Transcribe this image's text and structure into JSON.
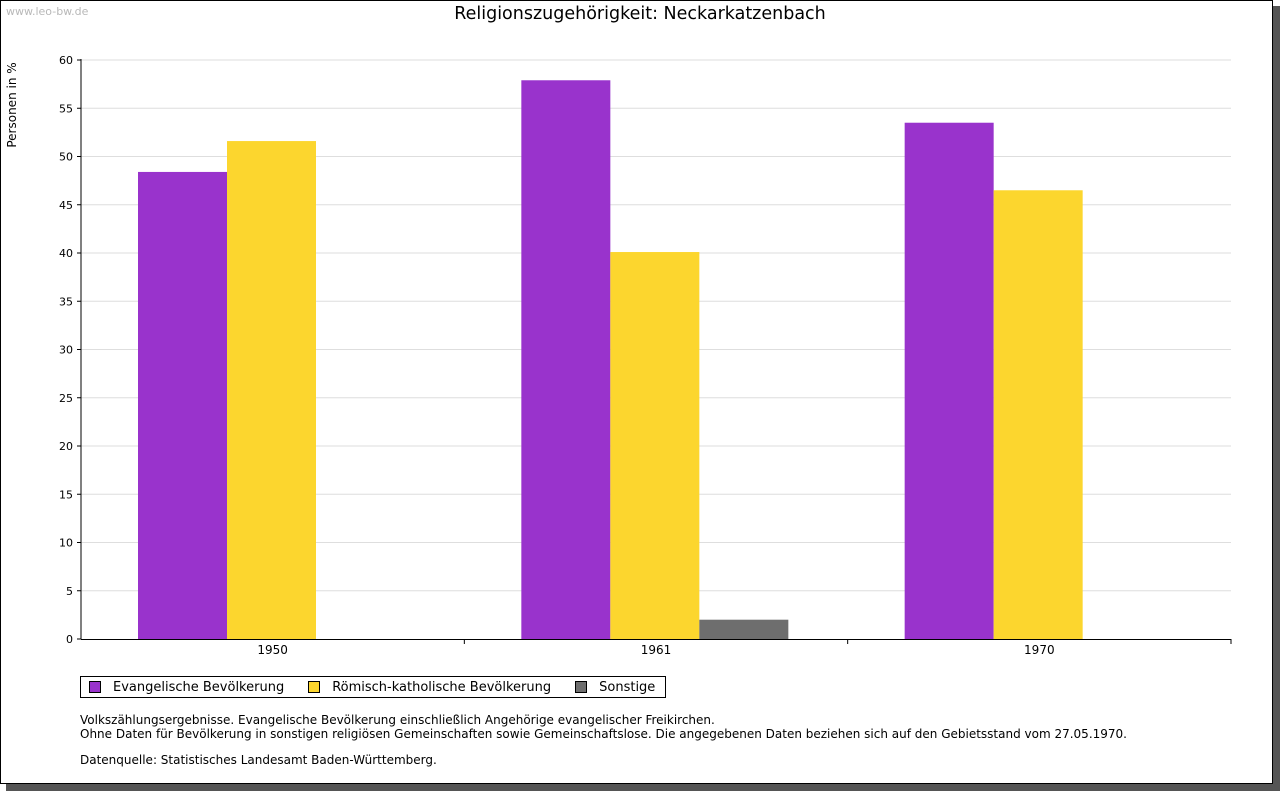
{
  "watermark": "www.leo-bw.de",
  "chart_data": {
    "type": "bar",
    "title": "Religionszugehörigkeit: Neckarkatzenbach",
    "xlabel": "",
    "ylabel": "Personen in %",
    "ylim": [
      0,
      60
    ],
    "yticks": [
      0,
      5,
      10,
      15,
      20,
      25,
      30,
      35,
      40,
      45,
      50,
      55,
      60
    ],
    "categories": [
      "1950",
      "1961",
      "1970"
    ],
    "series": [
      {
        "name": "Evangelische Bevölkerung",
        "color": "#9933cc",
        "values": [
          48.4,
          57.9,
          53.5
        ]
      },
      {
        "name": "Römisch-katholische Bevölkerung",
        "color": "#fcd62e",
        "values": [
          51.6,
          40.1,
          46.5
        ]
      },
      {
        "name": "Sonstige",
        "color": "#6e6e6e",
        "values": [
          null,
          2.0,
          null
        ]
      }
    ],
    "grid": true,
    "legend_position": "bottom-left"
  },
  "notes": {
    "line1": "Volkszählungsergebnisse. Evangelische Bevölkerung einschließlich Angehörige evangelischer Freikirchen.",
    "line2": "Ohne Daten für Bevölkerung in sonstigen religiösen Gemeinschaften sowie Gemeinschaftslose. Die angegebenen Daten beziehen sich auf den Gebietsstand vom 27.05.1970.",
    "source": "Datenquelle: Statistisches Landesamt Baden-Württemberg."
  }
}
